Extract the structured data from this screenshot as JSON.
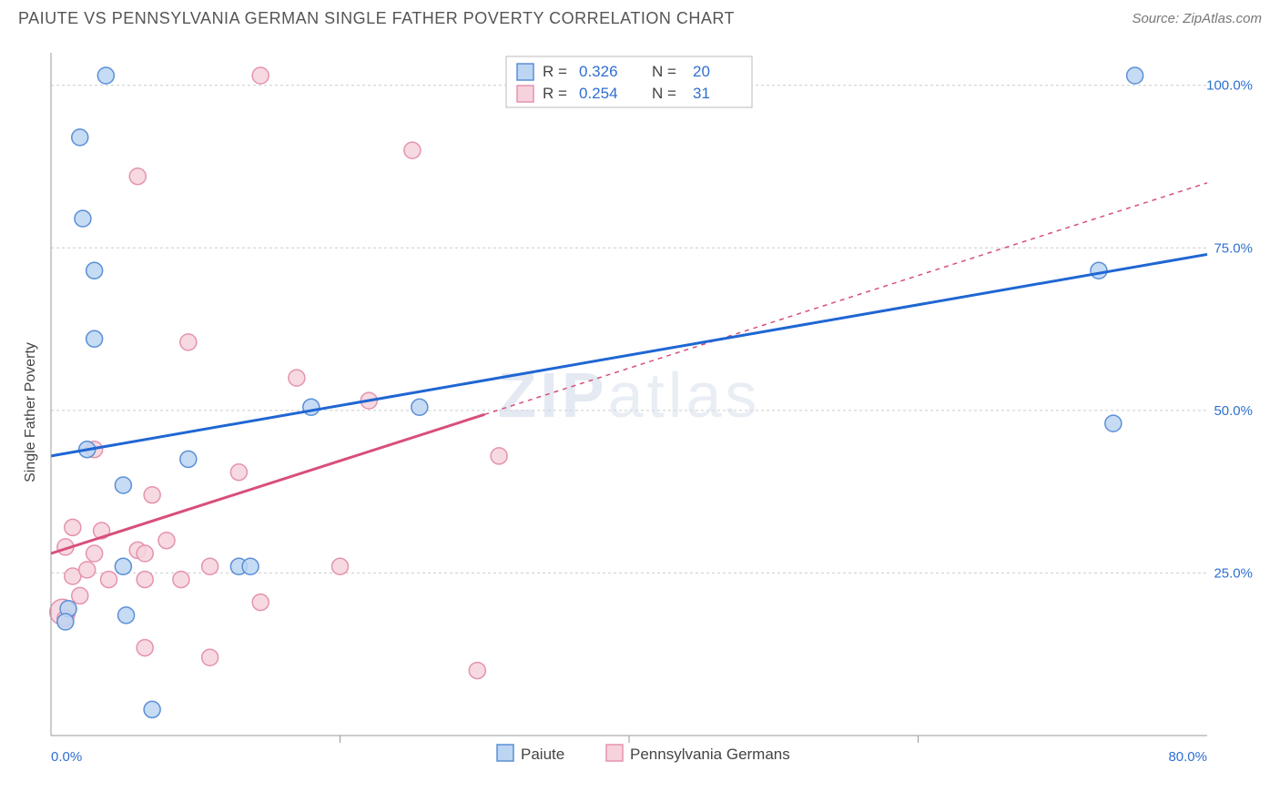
{
  "header": {
    "title": "PAIUTE VS PENNSYLVANIA GERMAN SINGLE FATHER POVERTY CORRELATION CHART",
    "source": "Source: ZipAtlas.com"
  },
  "chart": {
    "type": "scatter",
    "ylabel": "Single Father Poverty",
    "watermark": "ZIPatlas",
    "background_color": "#ffffff",
    "grid_color": "#cccccc",
    "axis_color": "#999999",
    "xlim": [
      0,
      80
    ],
    "ylim": [
      0,
      105
    ],
    "x_ticks": [
      {
        "pos": 0,
        "label": "0.0%"
      },
      {
        "pos": 80,
        "label": "80.0%"
      }
    ],
    "x_minor_ticks": [
      20,
      40,
      60
    ],
    "y_ticks": [
      {
        "pos": 25,
        "label": "25.0%"
      },
      {
        "pos": 50,
        "label": "50.0%"
      },
      {
        "pos": 75,
        "label": "75.0%"
      },
      {
        "pos": 100,
        "label": "100.0%"
      }
    ],
    "series": {
      "paiute": {
        "label": "Paiute",
        "marker_fill": "#bcd5f2",
        "marker_stroke": "#5a8fd6",
        "line_color": "#1f66d3",
        "line_width": 3,
        "line_dash": "none",
        "r_value": "0.326",
        "n_value": "20",
        "regression": {
          "x1": 0,
          "y1": 43,
          "x2": 80,
          "y2": 74
        },
        "points": [
          {
            "x": 3.8,
            "y": 101.5,
            "r": 9
          },
          {
            "x": 2.0,
            "y": 92.0,
            "r": 9
          },
          {
            "x": 2.2,
            "y": 79.5,
            "r": 9
          },
          {
            "x": 3.0,
            "y": 71.5,
            "r": 9
          },
          {
            "x": 3.0,
            "y": 61.0,
            "r": 9
          },
          {
            "x": 9.5,
            "y": 42.5,
            "r": 9
          },
          {
            "x": 5.0,
            "y": 38.5,
            "r": 9
          },
          {
            "x": 13.0,
            "y": 26.0,
            "r": 9
          },
          {
            "x": 13.8,
            "y": 26.0,
            "r": 9
          },
          {
            "x": 1.2,
            "y": 19.5,
            "r": 9
          },
          {
            "x": 5.2,
            "y": 18.5,
            "r": 9
          },
          {
            "x": 1.0,
            "y": 17.5,
            "r": 9
          },
          {
            "x": 7.0,
            "y": 4.0,
            "r": 9
          },
          {
            "x": 18.0,
            "y": 50.5,
            "r": 9
          },
          {
            "x": 25.5,
            "y": 50.5,
            "r": 9
          },
          {
            "x": 72.5,
            "y": 71.5,
            "r": 9
          },
          {
            "x": 73.5,
            "y": 48.0,
            "r": 9
          },
          {
            "x": 75.0,
            "y": 101.5,
            "r": 9
          },
          {
            "x": 5.0,
            "y": 26.0,
            "r": 9
          },
          {
            "x": 2.5,
            "y": 44.0,
            "r": 9
          }
        ]
      },
      "penn_german": {
        "label": "Pennsylvania Germans",
        "marker_fill": "#f6d2dc",
        "marker_stroke": "#e593ad",
        "line_color": "#d84f7a",
        "line_width": 3,
        "line_dash_solid_end_x": 30,
        "line_dash": "5 5",
        "r_value": "0.254",
        "n_value": "31",
        "regression": {
          "x1": 0,
          "y1": 28,
          "x2": 80,
          "y2": 85
        },
        "points": [
          {
            "x": 14.5,
            "y": 101.5,
            "r": 9
          },
          {
            "x": 6.0,
            "y": 86.0,
            "r": 9
          },
          {
            "x": 9.5,
            "y": 60.5,
            "r": 9
          },
          {
            "x": 17.0,
            "y": 55.0,
            "r": 9
          },
          {
            "x": 22.0,
            "y": 51.5,
            "r": 9
          },
          {
            "x": 25.0,
            "y": 90.0,
            "r": 9
          },
          {
            "x": 31.0,
            "y": 43.0,
            "r": 9
          },
          {
            "x": 3.0,
            "y": 44.0,
            "r": 9
          },
          {
            "x": 13.0,
            "y": 40.5,
            "r": 9
          },
          {
            "x": 7.0,
            "y": 37.0,
            "r": 9
          },
          {
            "x": 1.5,
            "y": 32.0,
            "r": 9
          },
          {
            "x": 3.5,
            "y": 31.5,
            "r": 9
          },
          {
            "x": 1.0,
            "y": 29.0,
            "r": 9
          },
          {
            "x": 6.0,
            "y": 28.5,
            "r": 9
          },
          {
            "x": 6.5,
            "y": 28.0,
            "r": 9
          },
          {
            "x": 11.0,
            "y": 26.0,
            "r": 9
          },
          {
            "x": 20.0,
            "y": 26.0,
            "r": 9
          },
          {
            "x": 1.5,
            "y": 24.5,
            "r": 9
          },
          {
            "x": 4.0,
            "y": 24.0,
            "r": 9
          },
          {
            "x": 6.5,
            "y": 24.0,
            "r": 9
          },
          {
            "x": 9.0,
            "y": 24.0,
            "r": 9
          },
          {
            "x": 2.0,
            "y": 21.5,
            "r": 9
          },
          {
            "x": 0.8,
            "y": 19.0,
            "r": 14
          },
          {
            "x": 14.5,
            "y": 20.5,
            "r": 9
          },
          {
            "x": 6.5,
            "y": 13.5,
            "r": 9
          },
          {
            "x": 11.0,
            "y": 12.0,
            "r": 9
          },
          {
            "x": 29.5,
            "y": 10.0,
            "r": 9
          },
          {
            "x": 1.0,
            "y": 18.0,
            "r": 9
          },
          {
            "x": 3.0,
            "y": 28.0,
            "r": 9
          },
          {
            "x": 8.0,
            "y": 30.0,
            "r": 9
          },
          {
            "x": 2.5,
            "y": 25.5,
            "r": 9
          }
        ]
      }
    },
    "stats_legend": {
      "r_label": "R =",
      "n_label": "N ="
    },
    "tick_label_color": "#2f6fd0",
    "tick_label_fontsize": 15
  }
}
